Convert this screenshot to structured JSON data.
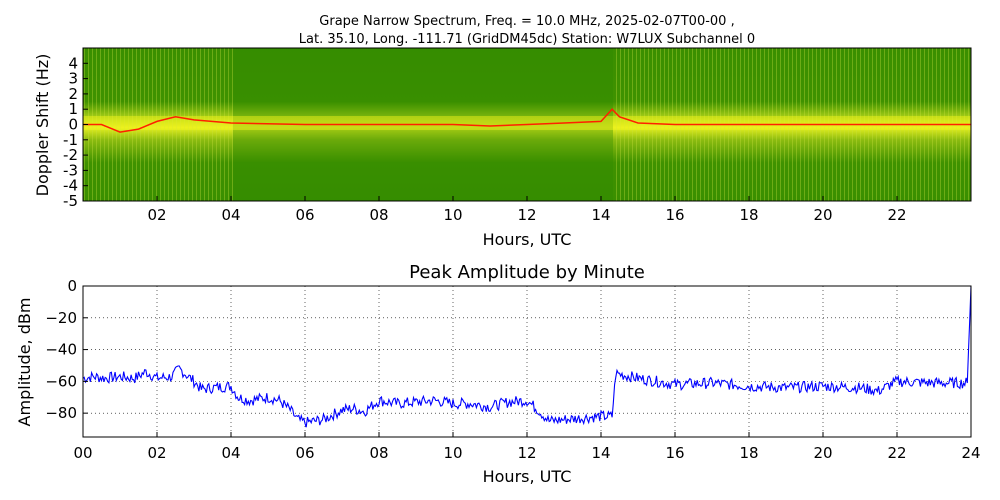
{
  "chart_data": [
    {
      "type": "heatmap",
      "title_line1": "Grape Narrow Spectrum, Freq. = 10.0 MHz, 2025-02-07T00-00 ,",
      "title_line2": "Lat.  35.10, Long. -111.71 (GridDM45dc) Station: W7LUX Subchannel 0",
      "xlabel": "Hours, UTC",
      "ylabel": "Doppler Shift (Hz)",
      "xlim": [
        0,
        24
      ],
      "ylim": [
        -5,
        5
      ],
      "x_ticks": [
        "02",
        "04",
        "06",
        "08",
        "10",
        "12",
        "14",
        "16",
        "18",
        "20",
        "22"
      ],
      "y_ticks": [
        "4",
        "3",
        "2",
        "1",
        "0",
        "-1",
        "-2",
        "-3",
        "-4",
        "-5"
      ],
      "colors": {
        "background": "#2f8a00",
        "mid": "#a8cc20",
        "high": "#ffff00",
        "peak": "#ff2000"
      },
      "peak_trace": {
        "x": [
          0,
          0.5,
          1,
          1.5,
          2,
          2.5,
          3,
          4,
          6,
          8,
          10,
          11,
          12,
          13,
          14,
          14.3,
          14.5,
          15,
          16,
          18,
          20,
          22,
          24
        ],
        "y": [
          0,
          0,
          -0.5,
          -0.3,
          0.2,
          0.5,
          0.3,
          0.1,
          0,
          0,
          0,
          -0.1,
          0,
          0.1,
          0.2,
          1.0,
          0.5,
          0.1,
          0,
          0,
          0,
          0,
          0
        ]
      }
    },
    {
      "type": "line",
      "title": "Peak Amplitude by Minute",
      "xlabel": "Hours, UTC",
      "ylabel": "Amplitude, dBm",
      "xlim": [
        0,
        24
      ],
      "ylim": [
        -95,
        0
      ],
      "x_ticks": [
        "00",
        "02",
        "04",
        "06",
        "08",
        "10",
        "12",
        "14",
        "16",
        "18",
        "20",
        "22",
        "24"
      ],
      "y_ticks": [
        "0",
        "−20",
        "−40",
        "−60",
        "−80"
      ],
      "grid": true,
      "line_color": "#0000ff",
      "series": [
        {
          "x": [
            0,
            0.3,
            0.6,
            1,
            1.4,
            1.7,
            2,
            2.4,
            2.6,
            3,
            3.2,
            3.5,
            4,
            4.2,
            4.5,
            5,
            5.3,
            5.6,
            5.8,
            6,
            6.5,
            7,
            7.3,
            7.6,
            8,
            8.5,
            9,
            9.5,
            10,
            10.5,
            11,
            11.5,
            12,
            12.3,
            12.6,
            13,
            13.5,
            14,
            14.3,
            14.4,
            15,
            16,
            17,
            18,
            19,
            20,
            21,
            21.5,
            22,
            23,
            23.9,
            24
          ],
          "y": [
            -58,
            -57,
            -58,
            -57,
            -58,
            -54,
            -58,
            -57,
            -52,
            -60,
            -65,
            -64,
            -63,
            -70,
            -72,
            -70,
            -72,
            -78,
            -84,
            -86,
            -84,
            -78,
            -77,
            -79,
            -72,
            -74,
            -73,
            -72,
            -74,
            -74,
            -76,
            -73,
            -72,
            -78,
            -85,
            -84,
            -83,
            -82,
            -82,
            -55,
            -58,
            -62,
            -61,
            -63,
            -64,
            -63,
            -64,
            -66,
            -60,
            -61,
            -61,
            0
          ]
        }
      ]
    }
  ]
}
